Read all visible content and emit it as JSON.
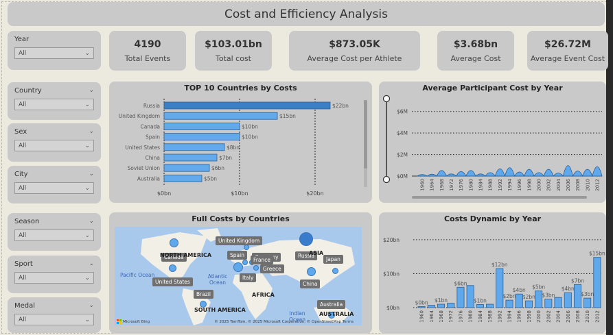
{
  "header": {
    "title": "Cost and Efficiency Analysis"
  },
  "kpis": [
    {
      "value": "4190",
      "label": "Total Events"
    },
    {
      "value": "$103.01bn",
      "label": "Total cost"
    },
    {
      "value": "$873.05K",
      "label": "Average Cost per Athlete"
    },
    {
      "value": "$3.68bn",
      "label": "Average Cost"
    },
    {
      "value": "$26.72M",
      "label": "Average Event Cost"
    }
  ],
  "slicers": [
    {
      "label": "Year",
      "value": "All"
    },
    {
      "label": "Country",
      "value": "All"
    },
    {
      "label": "Sex",
      "value": "All"
    },
    {
      "label": "City",
      "value": "All"
    },
    {
      "label": "Season",
      "value": "All"
    },
    {
      "label": "Sport",
      "value": "All"
    },
    {
      "label": "Medal",
      "value": "All"
    }
  ],
  "top10": {
    "title": "TOP 10 Countries by Costs",
    "x_ticks": [
      "$0bn",
      "$10bn",
      "$20bn"
    ]
  },
  "avgcost": {
    "title": "Average Participant Cost by Year",
    "y_ticks": [
      "$6M",
      "$4M",
      "$2M",
      "$0M"
    ]
  },
  "map": {
    "title": "Full Costs by Countries",
    "labels": [
      "United Kingdom",
      "Canada",
      "Spain",
      "Germany",
      "France",
      "Italy",
      "Greece",
      "Russia",
      "Japan",
      "United States",
      "China",
      "Brazil",
      "Australia"
    ],
    "continents": [
      "NORTH AMERICA",
      "ASIA",
      "AFRICA",
      "SOUTH AMERICA",
      "AUSTRALIA"
    ],
    "oceans": {
      "pacific": "Pacific Ocean",
      "atlantic": "Atlantic Ocean",
      "indian": "Indian Ocean"
    },
    "attribution": "© 2025 TomTom, © 2025 Microsoft Corporation, © OpenStreetMap  Terms",
    "brand": "Microsoft Bing"
  },
  "dynamic": {
    "title": "Costs Dynamic by Year",
    "y_ticks": [
      "$20bn",
      "$10bn",
      "$0bn"
    ]
  },
  "chart_data": [
    {
      "type": "bar",
      "title": "TOP 10 Countries by Costs",
      "categories": [
        "Russia",
        "United Kingdom",
        "Canada",
        "Spain",
        "United States",
        "China",
        "Soviet Union",
        "Australia"
      ],
      "values": [
        22,
        15,
        10,
        10,
        8,
        7,
        6,
        5
      ],
      "data_labels": [
        "$22bn",
        "$15bn",
        "$10bn",
        "$10bn",
        "$8bn",
        "$7bn",
        "$6bn",
        "$5bn"
      ],
      "xlim": [
        0,
        27
      ],
      "colors": {
        "highlight": "#3b7fc4",
        "bar": "#62aaec"
      }
    },
    {
      "type": "area",
      "title": "Average Participant Cost by Year",
      "categories": [
        "1960",
        "1964",
        "1968",
        "1972",
        "1976",
        "1980",
        "1984",
        "1988",
        "1992",
        "1994",
        "1996",
        "1998",
        "2000",
        "2002",
        "2004",
        "2006",
        "2008",
        "2010",
        "2012"
      ],
      "values": [
        0.05,
        0.1,
        0.8,
        0.15,
        0.6,
        0.8,
        0.15,
        0.4,
        1.1,
        1.3,
        0.5,
        1.0,
        0.4,
        1.0,
        0.3,
        1.7,
        0.7,
        1.0,
        1.5
      ],
      "unit": "M",
      "ylim": [
        0,
        7
      ],
      "color": "#5fa8ec"
    },
    {
      "type": "bar",
      "title": "Costs Dynamic by Year",
      "categories": [
        "1960",
        "1964",
        "1968",
        "1972",
        "1976",
        "1980",
        "1984",
        "1988",
        "1992",
        "1994",
        "1996",
        "1998",
        "2000",
        "2002",
        "2004",
        "2006",
        "2008",
        "2010",
        "2012"
      ],
      "values": [
        0.3,
        0.7,
        1.0,
        1.3,
        6.0,
        6.5,
        0.9,
        1.0,
        11.5,
        2.2,
        4.0,
        2.0,
        4.9,
        2.5,
        3.0,
        4.4,
        6.8,
        2.8,
        14.8
      ],
      "data_labels": {
        "0": "$0bn",
        "2": "$1bn",
        "4": "$6bn",
        "6": "$1bn",
        "8": "$12bn",
        "9": "$2bn",
        "10": "$4bn",
        "11": "$2bn",
        "12": "$5bn",
        "13": "$3bn",
        "15": "$4bn",
        "16": "$7bn",
        "17": "$3bn",
        "18": "$15bn"
      },
      "ylim": [
        0,
        22
      ],
      "color": "#5fa8ec"
    }
  ]
}
